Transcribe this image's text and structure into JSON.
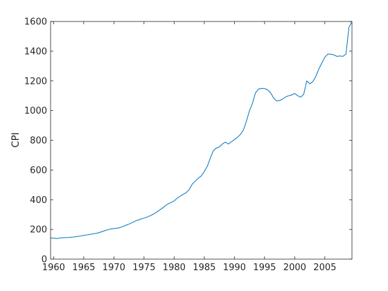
{
  "chart_data": {
    "type": "line",
    "title": "",
    "xlabel": "",
    "ylabel": "CPI",
    "xlim": [
      1959.5,
      2009.5
    ],
    "ylim": [
      0,
      1600
    ],
    "x_ticks": [
      1960,
      1965,
      1970,
      1975,
      1980,
      1985,
      1990,
      1995,
      2000,
      2005
    ],
    "y_ticks": [
      0,
      200,
      400,
      600,
      800,
      1000,
      1200,
      1400,
      1600
    ],
    "x_tick_labels": [
      "1960",
      "1965",
      "1970",
      "1975",
      "1980",
      "1985",
      "1990",
      "1995",
      "2000",
      "2005"
    ],
    "y_tick_labels": [
      "0",
      "200",
      "400",
      "600",
      "800",
      "1000",
      "1200",
      "1400",
      "1600"
    ],
    "grid": false,
    "legend": "none",
    "line_color": "#0072bd",
    "series": [
      {
        "x": [
          1959.5,
          1960.0,
          1960.5,
          1961.0,
          1961.5,
          1962.0,
          1962.5,
          1963.0,
          1963.5,
          1964.0,
          1964.5,
          1965.0,
          1965.5,
          1966.0,
          1966.5,
          1967.0,
          1967.5,
          1968.0,
          1968.5,
          1969.0,
          1969.5,
          1970.0,
          1970.5,
          1971.0,
          1971.5,
          1972.0,
          1972.5,
          1973.0,
          1973.5,
          1974.0,
          1974.5,
          1975.0,
          1975.5,
          1976.0,
          1976.5,
          1977.0,
          1977.5,
          1978.0,
          1978.5,
          1979.0,
          1979.5,
          1980.0,
          1980.5,
          1981.0,
          1981.5,
          1982.0,
          1982.5,
          1983.0,
          1983.5,
          1984.0,
          1984.5,
          1985.0,
          1985.5,
          1986.0,
          1986.5,
          1987.0,
          1987.5,
          1988.0,
          1988.5,
          1989.0,
          1989.5,
          1990.0,
          1990.5,
          1991.0,
          1991.5,
          1992.0,
          1992.5,
          1993.0,
          1993.5,
          1994.0,
          1994.5,
          1995.0,
          1995.5,
          1996.0,
          1996.5,
          1997.0,
          1997.5,
          1998.0,
          1998.5,
          1999.0,
          1999.5,
          2000.0,
          2000.5,
          2001.0,
          2001.5,
          2002.0,
          2002.5,
          2003.0,
          2003.5,
          2004.0,
          2004.5,
          2005.0,
          2005.5,
          2006.0,
          2006.5,
          2007.0,
          2007.5,
          2008.0,
          2008.5,
          2009.0,
          2009.5
        ],
        "values": [
          142,
          141,
          138,
          142,
          144,
          145,
          146,
          148,
          150,
          153,
          156,
          160,
          163,
          166,
          170,
          173,
          178,
          185,
          192,
          198,
          203,
          206,
          208,
          212,
          220,
          228,
          236,
          245,
          255,
          263,
          270,
          276,
          283,
          292,
          302,
          314,
          328,
          342,
          358,
          372,
          381,
          392,
          410,
          424,
          436,
          448,
          468,
          505,
          525,
          545,
          560,
          590,
          625,
          680,
          730,
          748,
          755,
          775,
          788,
          775,
          790,
          805,
          820,
          840,
          870,
          930,
          1000,
          1050,
          1120,
          1145,
          1150,
          1148,
          1140,
          1120,
          1085,
          1065,
          1068,
          1078,
          1092,
          1100,
          1105,
          1115,
          1100,
          1090,
          1110,
          1200,
          1180,
          1195,
          1230,
          1280,
          1320,
          1360,
          1380,
          1380,
          1375,
          1365,
          1368,
          1365,
          1380,
          1560,
          1600
        ]
      }
    ]
  }
}
